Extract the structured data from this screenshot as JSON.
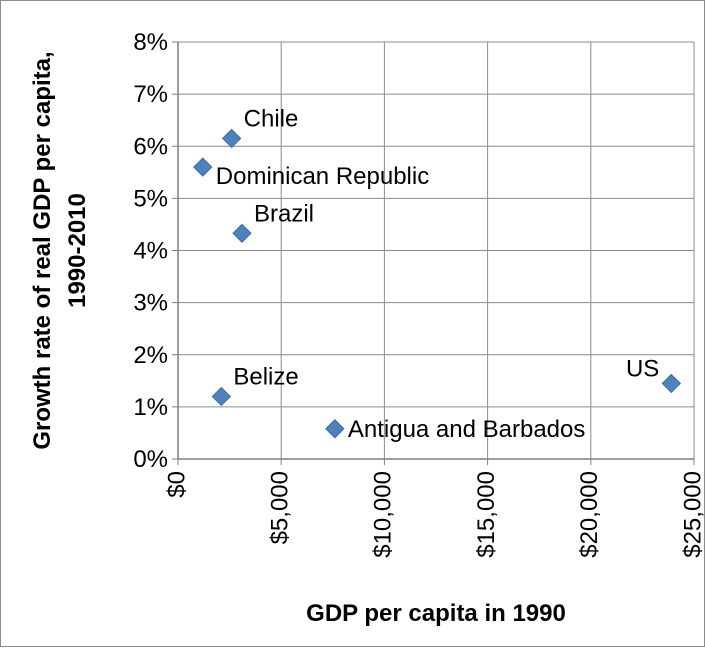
{
  "chart_data": {
    "type": "scatter",
    "title": "",
    "xlabel": "GDP per capita in 1990",
    "ylabel_lines": [
      "Growth rate of real GDP per capita,",
      "1990-2010"
    ],
    "xlim": [
      0,
      25000
    ],
    "ylim": [
      0,
      0.08
    ],
    "x_ticks": [
      {
        "value": 0,
        "label": "$0"
      },
      {
        "value": 5000,
        "label": "$5,000"
      },
      {
        "value": 10000,
        "label": "$10,000"
      },
      {
        "value": 15000,
        "label": "$15,000"
      },
      {
        "value": 20000,
        "label": "$20,000"
      },
      {
        "value": 25000,
        "label": "$25,000"
      }
    ],
    "y_ticks": [
      {
        "value": 0,
        "label": "0%"
      },
      {
        "value": 0.01,
        "label": "1%"
      },
      {
        "value": 0.02,
        "label": "2%"
      },
      {
        "value": 0.03,
        "label": "3%"
      },
      {
        "value": 0.04,
        "label": "4%"
      },
      {
        "value": 0.05,
        "label": "5%"
      },
      {
        "value": 0.06,
        "label": "6%"
      },
      {
        "value": 0.07,
        "label": "7%"
      },
      {
        "value": 0.08,
        "label": "8%"
      }
    ],
    "grid": true,
    "legend": "none",
    "marker": "diamond",
    "marker_color": "#4f81bd",
    "grid_color": "#8c8c8c",
    "points": [
      {
        "label": "Chile",
        "x": 2600,
        "y": 0.0615,
        "label_side": "upper-right"
      },
      {
        "label": "Dominican Republic",
        "x": 1200,
        "y": 0.056,
        "label_side": "lower-right"
      },
      {
        "label": "Brazil",
        "x": 3100,
        "y": 0.0433,
        "label_side": "upper-right"
      },
      {
        "label": "Belize",
        "x": 2100,
        "y": 0.012,
        "label_side": "upper-right"
      },
      {
        "label": "Antigua and Barbados",
        "x": 7600,
        "y": 0.0058,
        "label_side": "right"
      },
      {
        "label": "US",
        "x": 23900,
        "y": 0.0145,
        "label_side": "upper-left"
      }
    ]
  }
}
